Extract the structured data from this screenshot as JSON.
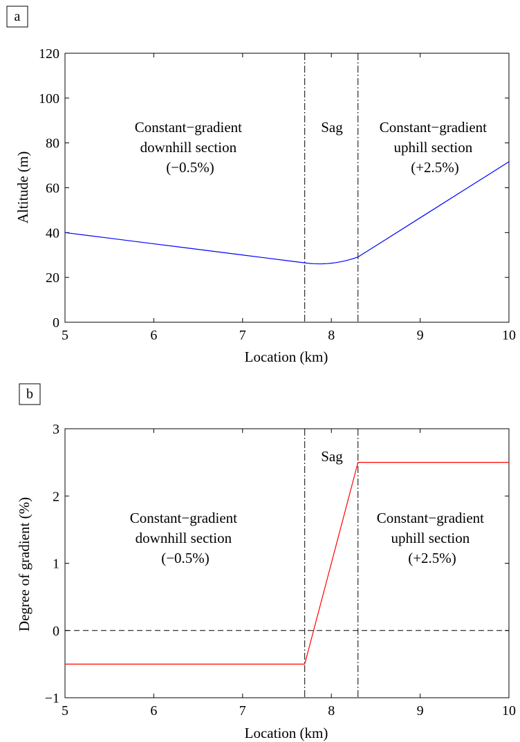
{
  "chart_data": [
    {
      "panel": "a",
      "type": "line",
      "title": "",
      "xlabel": "Location (km)",
      "ylabel": "Altitude (m)",
      "xlim": [
        5,
        10
      ],
      "ylim": [
        0,
        120
      ],
      "xticks": [
        5,
        6,
        7,
        8,
        9,
        10
      ],
      "yticks": [
        0,
        20,
        40,
        60,
        80,
        100,
        120
      ],
      "grid": false,
      "series": [
        {
          "color": "#0000ff",
          "x": [
            5,
            5.5,
            6,
            6.5,
            7,
            7.5,
            7.7,
            7.75,
            7.8,
            7.85,
            7.9,
            7.95,
            8.0,
            8.05,
            8.1,
            8.15,
            8.2,
            8.25,
            8.3,
            8.5,
            9,
            9.5,
            10
          ],
          "y": [
            40,
            37.5,
            35,
            32.5,
            30,
            27.5,
            26.5,
            26.27,
            26.12,
            26.05,
            26.07,
            26.16,
            26.33,
            26.59,
            26.93,
            27.35,
            27.85,
            28.44,
            29.1,
            34.1,
            46.6,
            59.1,
            71.6
          ]
        }
      ],
      "boundaries_x": [
        7.7,
        8.3
      ],
      "annotations": [
        {
          "lines": [
            "Constant−gradient",
            "downhill section",
            "(−0.5%)"
          ]
        },
        {
          "lines": [
            "Sag"
          ]
        },
        {
          "lines": [
            "Constant−gradient",
            "uphill section",
            "(+2.5%)"
          ]
        }
      ]
    },
    {
      "panel": "b",
      "type": "line",
      "title": "",
      "xlabel": "Location (km)",
      "ylabel": "Degree of gradient (%)",
      "xlim": [
        5,
        10
      ],
      "ylim": [
        -1,
        3
      ],
      "xticks": [
        5,
        6,
        7,
        8,
        9,
        10
      ],
      "yticks": [
        -1,
        0,
        1,
        2,
        3
      ],
      "grid": false,
      "series": [
        {
          "color": "#ff0000",
          "x": [
            5,
            7.7,
            8.3,
            10
          ],
          "y": [
            -0.5,
            -0.5,
            2.5,
            2.5
          ]
        }
      ],
      "zero_line": 0,
      "boundaries_x": [
        7.7,
        8.3
      ],
      "annotations": [
        {
          "lines": [
            "Constant−gradient",
            "downhill section",
            "(−0.5%)"
          ]
        },
        {
          "lines": [
            "Sag"
          ]
        },
        {
          "lines": [
            "Constant−gradient",
            "uphill section",
            "(+2.5%)"
          ]
        }
      ]
    }
  ],
  "panel_tags": [
    "a",
    "b"
  ],
  "colors": {
    "altitude_line": "#0000ff",
    "gradient_line": "#ff0000",
    "axes": "#000000"
  }
}
